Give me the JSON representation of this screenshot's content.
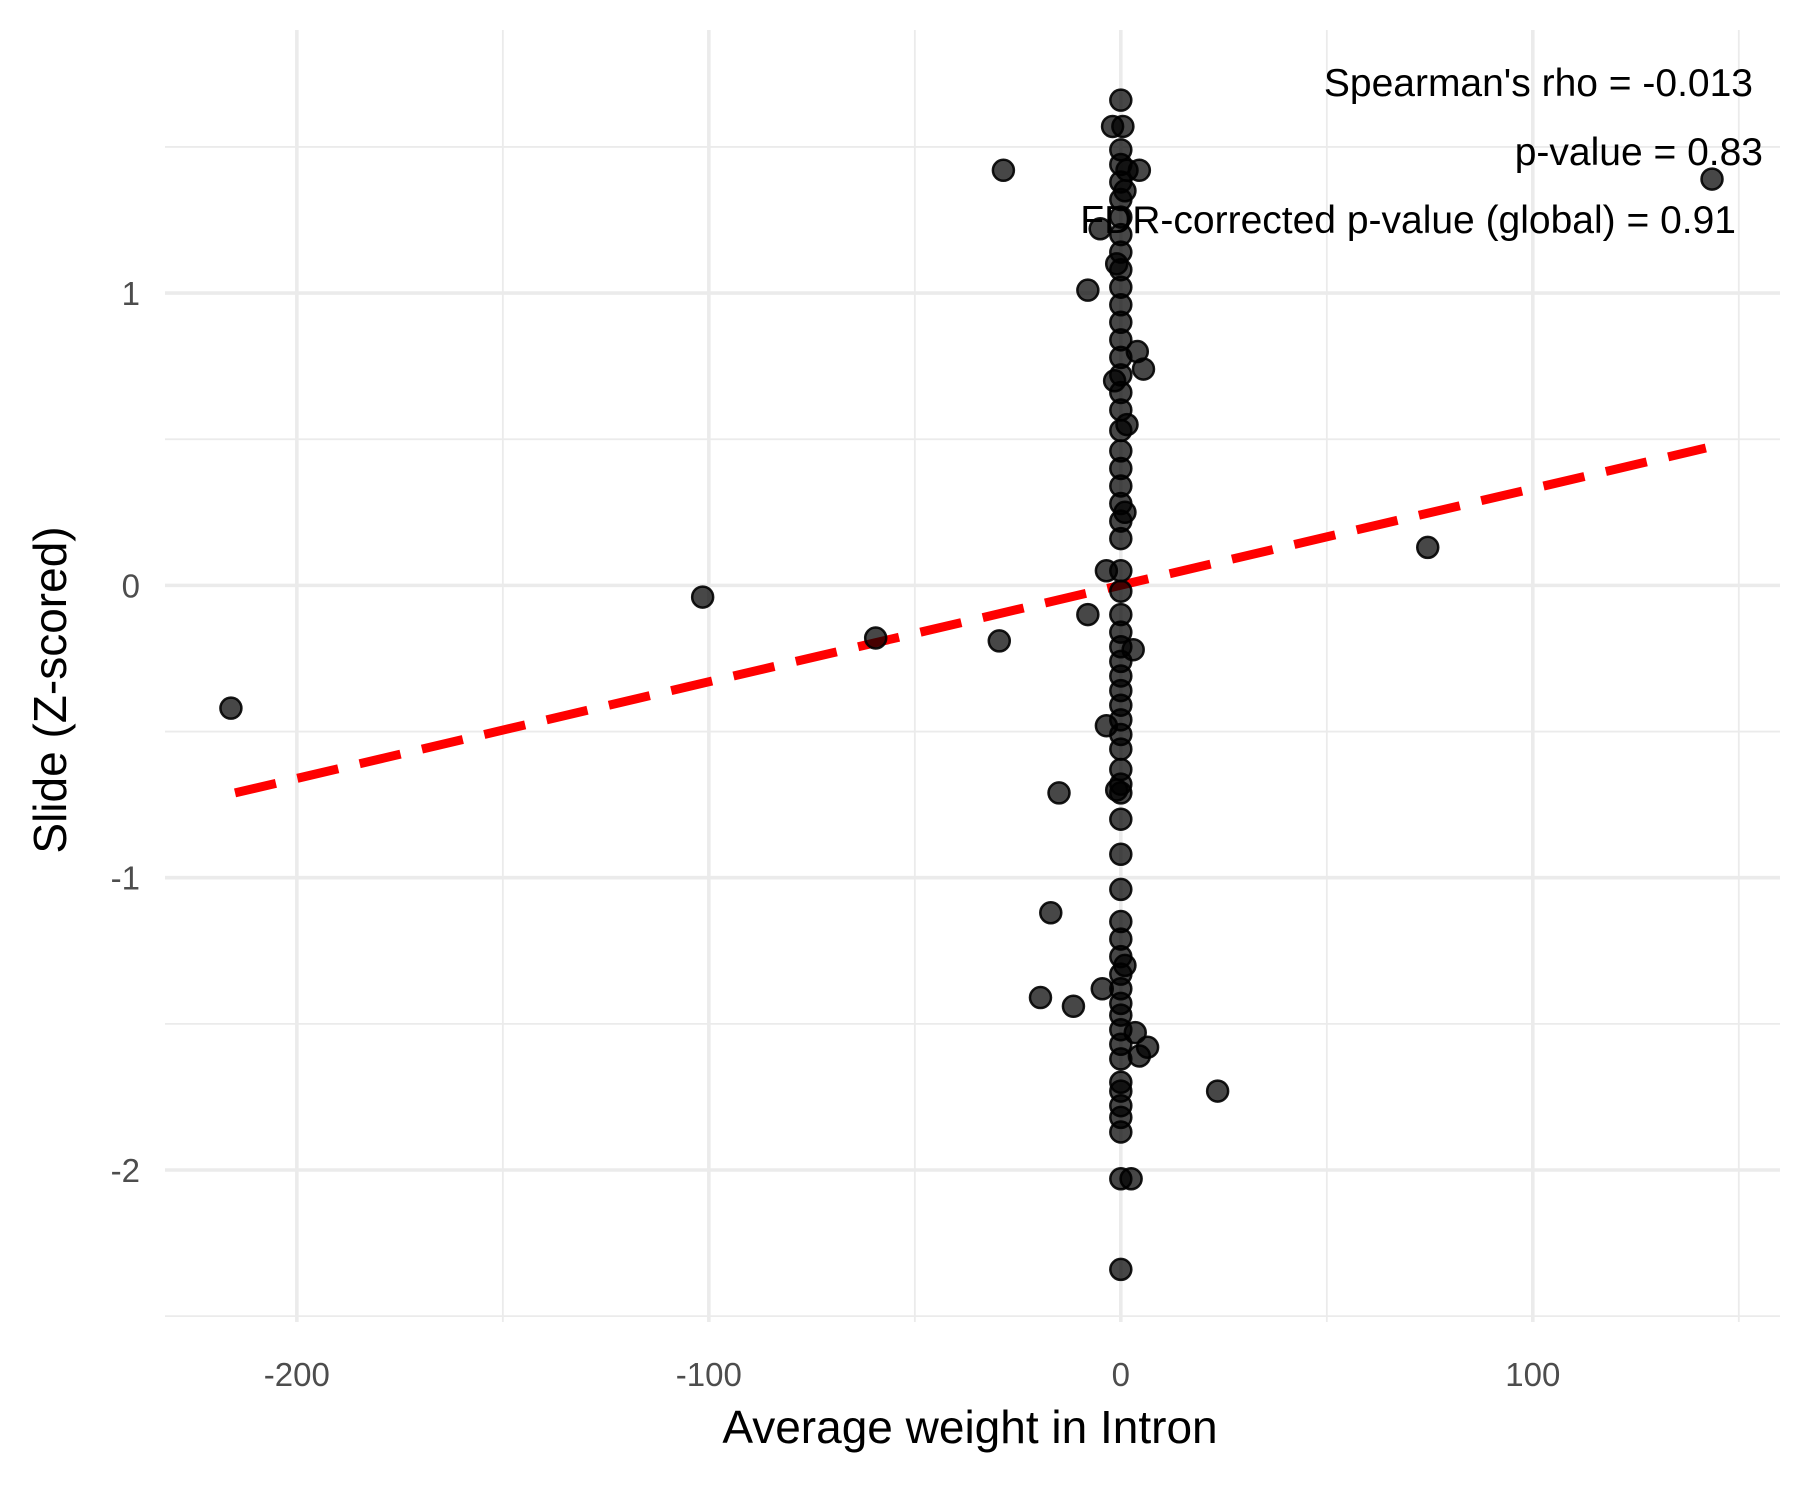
{
  "chart_data": {
    "type": "scatter",
    "xlabel": "Average weight in Intron",
    "ylabel": "Slide (Z-scored)",
    "xlim": [
      -232,
      160
    ],
    "ylim": [
      -2.52,
      1.9
    ],
    "x_ticks": [
      -200,
      -100,
      0,
      100
    ],
    "y_ticks": [
      -2,
      -1,
      0,
      1
    ],
    "x_minor_ticks": [
      -150,
      -50,
      50,
      150
    ],
    "y_minor_ticks": [
      -2.5,
      -1.5,
      -0.5,
      0.5,
      1.5
    ],
    "grid": true,
    "annotations": [
      "Spearman's rho = -0.013",
      "p-value = 0.83",
      "FDR-corrected p-value (global) = 0.91"
    ],
    "trend_line": {
      "x": [
        -215,
        142
      ],
      "y": [
        -0.71,
        0.47
      ],
      "color": "#ff0000",
      "style": "dashed"
    },
    "points": [
      [
        -216,
        -0.42
      ],
      [
        -101.5,
        -0.04
      ],
      [
        -59.5,
        -0.18
      ],
      [
        -29.5,
        -0.19
      ],
      [
        -28.5,
        1.42
      ],
      [
        -8,
        1.01
      ],
      [
        -8,
        -0.1
      ],
      [
        -3.5,
        0.05
      ],
      [
        74.5,
        0.13
      ],
      [
        143.5,
        1.39
      ],
      [
        23.5,
        -1.73
      ],
      [
        -15,
        -0.71
      ],
      [
        -17,
        -1.12
      ],
      [
        -19.5,
        -1.41
      ],
      [
        -11.5,
        -1.44
      ],
      [
        -4.5,
        -1.38
      ],
      [
        4.5,
        -1.61
      ],
      [
        6.5,
        -1.58
      ],
      [
        3.5,
        -1.53
      ],
      [
        4,
        0.8
      ],
      [
        5.5,
        0.74
      ],
      [
        4.5,
        1.42
      ],
      [
        3,
        -0.22
      ],
      [
        -3.5,
        -0.48
      ],
      [
        -5,
        1.22
      ],
      [
        -2,
        1.57
      ],
      [
        0.5,
        1.57
      ],
      [
        1.5,
        1.42
      ],
      [
        2.5,
        -2.03
      ],
      [
        0,
        -2.03
      ],
      [
        0,
        -2.34
      ],
      [
        0,
        -1.87
      ],
      [
        0,
        -1.82
      ],
      [
        0,
        -1.78
      ],
      [
        0,
        -1.73
      ],
      [
        0,
        -1.7
      ],
      [
        0,
        -1.62
      ],
      [
        0,
        -1.57
      ],
      [
        0,
        -1.52
      ],
      [
        0,
        -1.47
      ],
      [
        0,
        -1.43
      ],
      [
        0,
        -1.38
      ],
      [
        0,
        -1.33
      ],
      [
        0,
        -1.27
      ],
      [
        0,
        -1.21
      ],
      [
        0,
        -1.15
      ],
      [
        0,
        -1.04
      ],
      [
        0,
        -0.92
      ],
      [
        0,
        -0.8
      ],
      [
        0,
        -0.71
      ],
      [
        0,
        -0.68
      ],
      [
        0,
        -0.63
      ],
      [
        0,
        -0.56
      ],
      [
        0,
        -0.51
      ],
      [
        0,
        -0.46
      ],
      [
        0,
        -0.41
      ],
      [
        0,
        -0.36
      ],
      [
        0,
        -0.31
      ],
      [
        0,
        -0.26
      ],
      [
        0,
        -0.21
      ],
      [
        0,
        -0.16
      ],
      [
        0,
        -0.1
      ],
      [
        0,
        -0.02
      ],
      [
        0,
        0.05
      ],
      [
        0,
        0.16
      ],
      [
        0,
        0.22
      ],
      [
        0,
        0.28
      ],
      [
        0,
        0.34
      ],
      [
        0,
        0.4
      ],
      [
        0,
        0.46
      ],
      [
        0,
        0.53
      ],
      [
        0,
        0.6
      ],
      [
        0,
        0.66
      ],
      [
        0,
        0.72
      ],
      [
        0,
        0.78
      ],
      [
        0,
        0.84
      ],
      [
        0,
        0.9
      ],
      [
        0,
        0.96
      ],
      [
        0,
        1.02
      ],
      [
        0,
        1.08
      ],
      [
        0,
        1.14
      ],
      [
        0,
        1.2
      ],
      [
        0,
        1.26
      ],
      [
        0,
        1.32
      ],
      [
        0,
        1.38
      ],
      [
        0,
        1.44
      ],
      [
        0,
        1.49
      ],
      [
        0,
        1.66
      ],
      [
        1,
        1.35
      ],
      [
        -1,
        1.1
      ],
      [
        1.5,
        0.55
      ],
      [
        -1.5,
        0.7
      ],
      [
        1,
        0.25
      ],
      [
        -1,
        -0.7
      ],
      [
        1,
        -1.3
      ]
    ]
  }
}
